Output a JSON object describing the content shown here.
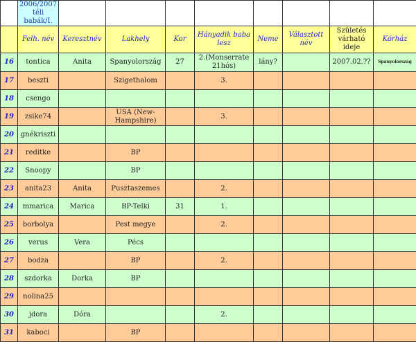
{
  "title": "2006/2007 téli babák/I.",
  "headers": [
    "",
    "Felh. név",
    "Keresztnév",
    "Lakhely",
    "Kor",
    "Hányadik baba lesz",
    "Neme",
    "Választott név",
    "Születés várható ideje",
    "Kórház"
  ],
  "colors": {
    "green": "#ccffcc",
    "orange": "#ffcc99",
    "header": "#ffff99",
    "title": "#ccffff"
  },
  "rows": [
    [
      "16",
      "tontica",
      "Anita",
      "Spanyolország",
      "27",
      "2.(Monserrate 21hós)",
      "lány?",
      "",
      "2007.02.??",
      "Spanyolország"
    ],
    [
      "17",
      "beszti",
      "",
      "Szigethalom",
      "",
      "3.",
      "",
      "",
      "",
      ""
    ],
    [
      "18",
      "csengo",
      "",
      "",
      "",
      "",
      "",
      "",
      "",
      ""
    ],
    [
      "19",
      "zsike74",
      "",
      "USA (New-Hampshire)",
      "",
      "3.",
      "",
      "",
      "",
      ""
    ],
    [
      "20",
      "gnékriszti",
      "",
      "",
      "",
      "",
      "",
      "",
      "",
      ""
    ],
    [
      "21",
      "reditke",
      "",
      "BP",
      "",
      "",
      "",
      "",
      "",
      ""
    ],
    [
      "22",
      "Snoopy",
      "",
      "BP",
      "",
      "",
      "",
      "",
      "",
      ""
    ],
    [
      "23",
      "anita23",
      "Anita",
      "Pusztaszemes",
      "",
      "2.",
      "",
      "",
      "",
      ""
    ],
    [
      "24",
      "mmarica",
      "Marica",
      "BP-Telki",
      "31",
      "1.",
      "",
      "",
      "",
      ""
    ],
    [
      "25",
      "borbolya",
      "",
      "Pest megye",
      "",
      "2.",
      "",
      "",
      "",
      ""
    ],
    [
      "26",
      "verus",
      "Vera",
      "Pécs",
      "",
      "",
      "",
      "",
      "",
      ""
    ],
    [
      "27",
      "bodza",
      "",
      "BP",
      "",
      "2.",
      "",
      "",
      "",
      ""
    ],
    [
      "28",
      "szdorka",
      "Dorka",
      "BP",
      "",
      "",
      "",
      "",
      "",
      ""
    ],
    [
      "29",
      "nolina25",
      "",
      "",
      "",
      "",
      "",
      "",
      "",
      ""
    ],
    [
      "30",
      "jdora",
      "Dóra",
      "",
      "",
      "2.",
      "",
      "",
      "",
      ""
    ],
    [
      "31",
      "kaboci",
      "",
      "BP",
      "",
      "",
      "",
      "",
      "",
      ""
    ]
  ]
}
